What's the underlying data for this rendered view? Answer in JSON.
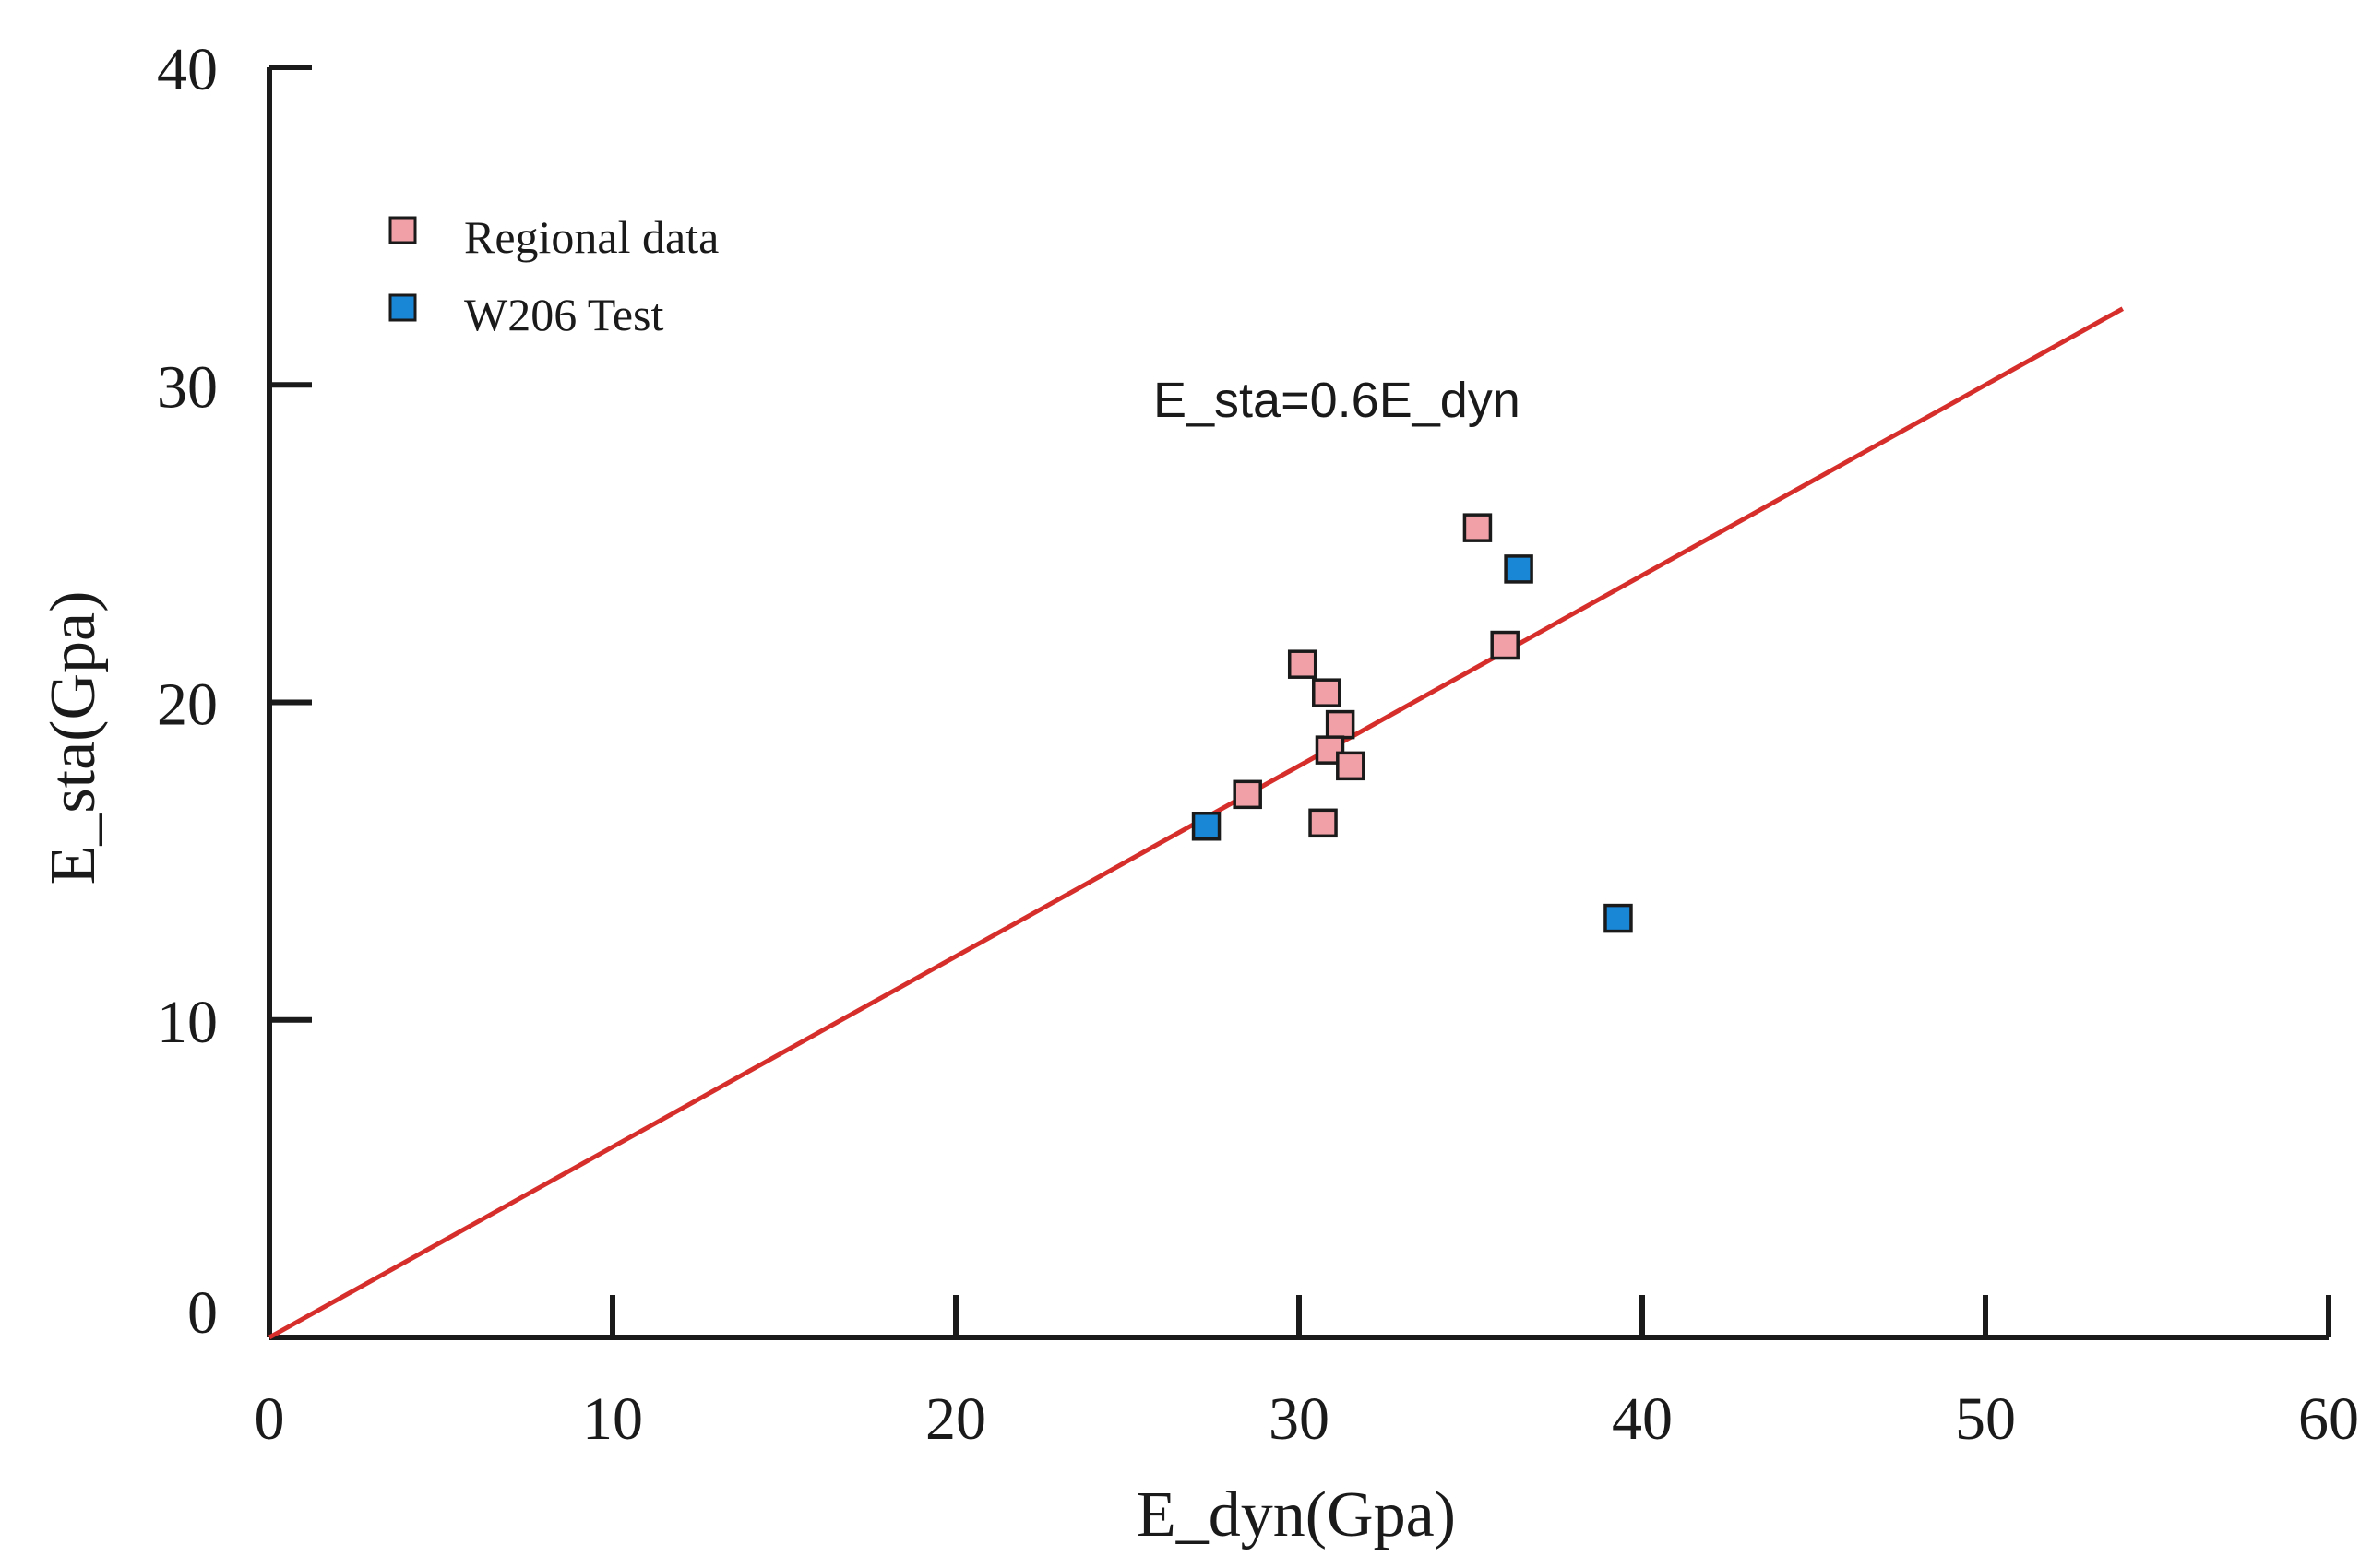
{
  "chart_data": {
    "type": "scatter",
    "title": "",
    "xlabel": "E_dyn(Gpa)",
    "ylabel": "E_sta(Gpa)",
    "xlim": [
      0,
      60
    ],
    "ylim": [
      0,
      40
    ],
    "x_ticks": [
      0,
      10,
      20,
      30,
      40,
      50,
      60
    ],
    "y_ticks": [
      0,
      10,
      20,
      30,
      40
    ],
    "x_tick_labels": [
      "0",
      "10",
      "20",
      "30",
      "40",
      "50",
      "60"
    ],
    "y_tick_labels": [
      "0",
      "10",
      "20",
      "30",
      "40"
    ],
    "grid": false,
    "legend_position": "top-left",
    "series": [
      {
        "name": "Regional data",
        "color": "#f0a0a6",
        "marker": "square",
        "points": [
          [
            28.5,
            17.1
          ],
          [
            30.1,
            21.2
          ],
          [
            30.8,
            20.3
          ],
          [
            31.2,
            19.3
          ],
          [
            30.9,
            18.5
          ],
          [
            31.5,
            18.0
          ],
          [
            30.7,
            16.2
          ],
          [
            35.2,
            25.5
          ],
          [
            36.0,
            21.8
          ]
        ]
      },
      {
        "name": "W206 Test",
        "color": "#1a86d6",
        "marker": "square",
        "points": [
          [
            27.3,
            16.1
          ],
          [
            36.4,
            24.2
          ],
          [
            39.3,
            13.2
          ]
        ]
      }
    ],
    "fit_line": {
      "label": "E_sta=0.6E_dyn",
      "slope": 0.6,
      "x_range": [
        0,
        54
      ],
      "color": "#d62f2b"
    }
  }
}
